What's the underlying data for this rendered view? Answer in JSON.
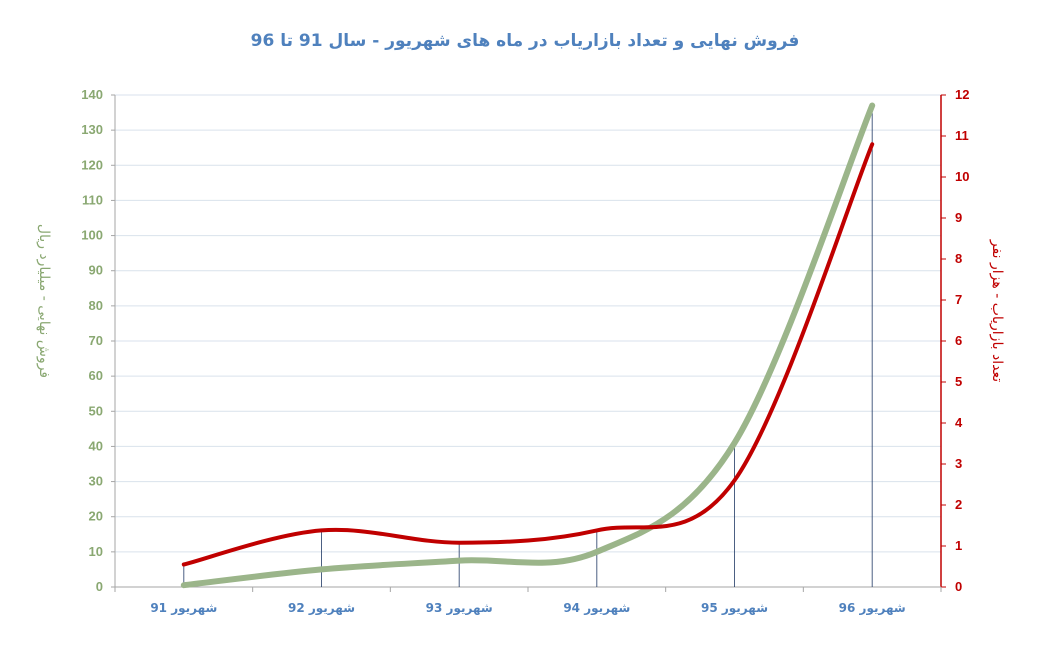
{
  "chart_data": {
    "type": "line",
    "title": "فروش نهایی و تعداد بازاریاب در ماه های شهریور - سال 91 تا 96",
    "categories": [
      "شهریور 91",
      "شهریور 92",
      "شهریور 93",
      "شهریور 94",
      "شهریور 95",
      "شهریور 96"
    ],
    "ylabel": "فروش نهایی - میلیارد ریال",
    "y2label": "تعداد بازاریاب - هزار نفر",
    "ylim": [
      0,
      140
    ],
    "y2lim": [
      0,
      12
    ],
    "yticks": [
      "0",
      "10",
      "20",
      "30",
      "40",
      "50",
      "60",
      "70",
      "80",
      "90",
      "100",
      "110",
      "120",
      "130",
      "140"
    ],
    "y2ticks": [
      "0",
      "1",
      "2",
      "3",
      "4",
      "5",
      "6",
      "7",
      "8",
      "9",
      "10",
      "11",
      "12"
    ],
    "grid": true,
    "legend": "none",
    "series": [
      {
        "values": [
          0.5,
          5,
          7.5,
          10,
          41,
          137
        ],
        "axis": "left",
        "color": "#9bb58a"
      },
      {
        "values": [
          0.55,
          1.38,
          1.08,
          1.38,
          2.6,
          10.8
        ],
        "axis": "right",
        "color": "#c00000"
      }
    ],
    "colors": {
      "title": "#4f81bd",
      "left_axis": "#8aa872",
      "right_axis": "#c00000",
      "category_labels": "#4f81bd",
      "grid": "#d9e2ec",
      "drop_lines": "#1f3864"
    }
  }
}
